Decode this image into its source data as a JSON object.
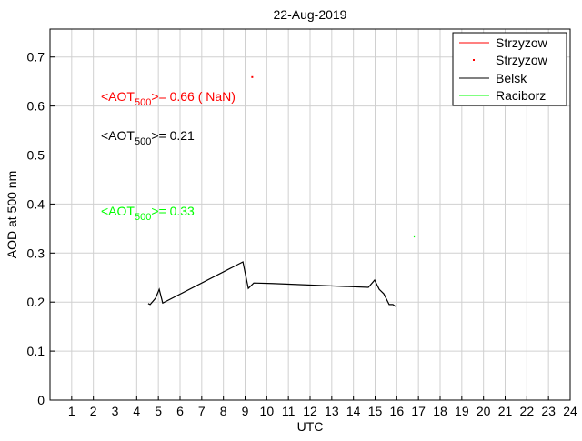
{
  "chart_data": {
    "type": "line",
    "title": "22-Aug-2019",
    "xlabel": "UTC",
    "ylabel": "AOD at 500 nm",
    "xlim": [
      0,
      24
    ],
    "ylim": [
      0,
      0.757
    ],
    "xticks": [
      1,
      2,
      3,
      4,
      5,
      6,
      7,
      8,
      9,
      10,
      11,
      12,
      13,
      14,
      15,
      16,
      17,
      18,
      19,
      20,
      21,
      22,
      23,
      24
    ],
    "yticks": [
      0,
      0.1,
      0.2,
      0.3,
      0.4,
      0.5,
      0.6,
      0.7
    ],
    "ytick_labels": [
      "0",
      "0.1",
      "0.2",
      "0.3",
      "0.4",
      "0.5",
      "0.6",
      "0.7"
    ],
    "grid": true,
    "legend_position": "top-right",
    "series": [
      {
        "name": "Strzyzow",
        "style": "line",
        "color": "#ff0000",
        "x": [],
        "y": []
      },
      {
        "name": "Strzyzow",
        "style": "point",
        "color": "#ff0000",
        "x": [
          9.33
        ],
        "y": [
          0.659
        ]
      },
      {
        "name": "Belsk",
        "style": "line",
        "color": "#000000",
        "x": [
          4.53,
          4.62,
          4.87,
          5.04,
          5.2,
          8.9,
          9.15,
          9.4,
          10.24,
          14.69,
          14.98,
          15.19,
          15.4,
          15.65,
          15.82,
          15.95
        ],
        "y": [
          0.197,
          0.195,
          0.208,
          0.226,
          0.198,
          0.282,
          0.228,
          0.239,
          0.238,
          0.23,
          0.245,
          0.226,
          0.217,
          0.195,
          0.195,
          0.191
        ]
      },
      {
        "name": "Raciborz",
        "style": "line",
        "color": "#00ff00",
        "x": [
          16.8,
          16.82
        ],
        "y": [
          0.332,
          0.336
        ]
      }
    ],
    "annotations": [
      {
        "prefix": "<AOT",
        "sub": "500",
        "suffix": ">= 0.66 ( NaN)",
        "color": "#ff0000"
      },
      {
        "prefix": "<AOT",
        "sub": "500",
        "suffix": ">= 0.21",
        "color": "#000000"
      },
      {
        "prefix": "<AOT",
        "sub": "500",
        "suffix": ">= 0.33",
        "color": "#00ff00"
      }
    ]
  }
}
